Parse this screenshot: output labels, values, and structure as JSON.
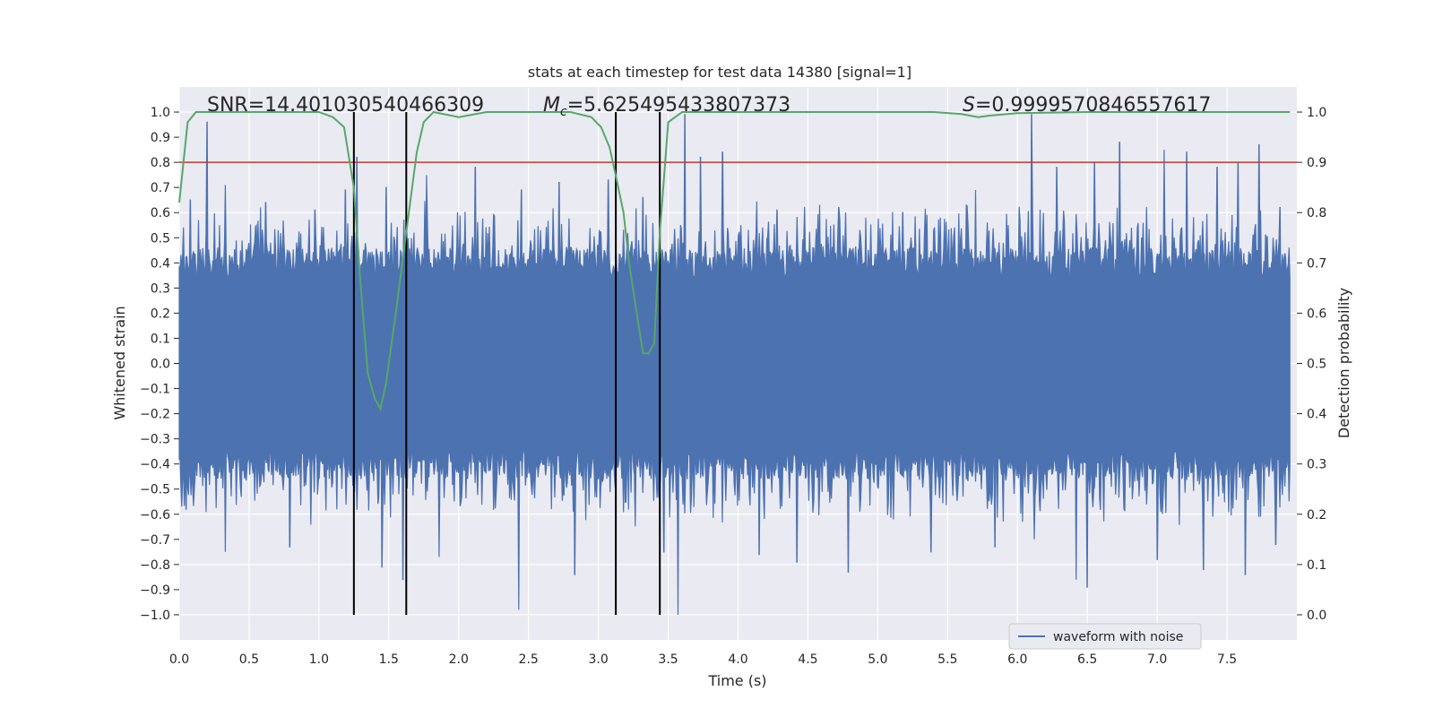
{
  "chart_data": {
    "type": "line",
    "title": "stats at each timestep for test data 14380 [signal=1]",
    "xlabel": "Time (s)",
    "ylabel": "Whitened strain",
    "y2label": "Detection probability",
    "xlim": [
      0.0,
      8.0
    ],
    "ylim": [
      -1.1,
      1.1
    ],
    "y2lim": [
      -0.05,
      1.05
    ],
    "x_ticks": [
      "0.0",
      "0.5",
      "1.0",
      "1.5",
      "2.0",
      "2.5",
      "3.0",
      "3.5",
      "4.0",
      "4.5",
      "5.0",
      "5.5",
      "6.0",
      "6.5",
      "7.0",
      "7.5"
    ],
    "y_ticks": [
      "1.0",
      "0.9",
      "0.8",
      "0.7",
      "0.6",
      "0.5",
      "0.4",
      "0.3",
      "0.2",
      "0.1",
      "0.0",
      "−0.1",
      "−0.2",
      "−0.3",
      "−0.4",
      "−0.5",
      "−0.6",
      "−0.7",
      "−0.8",
      "−0.9",
      "−1.0"
    ],
    "y2_ticks": [
      "1.0",
      "0.9",
      "0.8",
      "0.7",
      "0.6",
      "0.5",
      "0.4",
      "0.3",
      "0.2",
      "0.1",
      "0.0"
    ],
    "grid": true,
    "legend": {
      "placement": "lower-right",
      "entries": [
        "waveform with noise"
      ]
    },
    "annotations": {
      "snr": "SNR=14.401030540466309",
      "mc_symbol": "M",
      "mc_sub": "c",
      "mc_value": "=5.625495433807373",
      "s_symbol": "S",
      "s_value": "=0.9999570846557617"
    },
    "threshold": {
      "y2": 0.9,
      "color": "#c0392b"
    },
    "event_markers_x": [
      1.25,
      1.625,
      3.125,
      3.44
    ],
    "series": [
      {
        "name": "waveform with noise",
        "kind": "strain",
        "axis": "left",
        "color": "#4c72b0",
        "envelope": {
          "upper_base": 0.4,
          "lower_base": -0.4,
          "upper_spikes": [
            [
              0.08,
              0.65
            ],
            [
              0.2,
              0.96
            ],
            [
              0.33,
              0.71
            ],
            [
              0.62,
              0.64
            ],
            [
              0.97,
              0.61
            ],
            [
              1.19,
              0.69
            ],
            [
              1.27,
              0.82
            ],
            [
              1.48,
              0.7
            ],
            [
              1.77,
              0.75
            ],
            [
              2.12,
              0.78
            ],
            [
              2.45,
              0.69
            ],
            [
              2.72,
              0.72
            ],
            [
              3.07,
              0.73
            ],
            [
              3.32,
              0.66
            ],
            [
              3.62,
              0.99
            ],
            [
              3.73,
              0.82
            ],
            [
              3.89,
              0.84
            ],
            [
              4.28,
              0.61
            ],
            [
              4.72,
              0.62
            ],
            [
              5.18,
              0.6
            ],
            [
              5.7,
              0.69
            ],
            [
              6.1,
              0.99
            ],
            [
              6.28,
              0.78
            ],
            [
              6.55,
              0.8
            ],
            [
              6.73,
              0.88
            ],
            [
              7.05,
              0.85
            ],
            [
              7.21,
              0.84
            ],
            [
              7.43,
              0.78
            ],
            [
              7.58,
              0.8
            ],
            [
              7.73,
              0.87
            ],
            [
              7.88,
              0.62
            ]
          ],
          "lower_spikes": [
            [
              0.05,
              -0.58
            ],
            [
              0.33,
              -0.75
            ],
            [
              0.79,
              -0.73
            ],
            [
              1.45,
              -0.81
            ],
            [
              1.6,
              -0.86
            ],
            [
              1.86,
              -0.77
            ],
            [
              2.43,
              -0.98
            ],
            [
              2.83,
              -0.84
            ],
            [
              3.47,
              -0.75
            ],
            [
              3.57,
              -1.0
            ],
            [
              4.15,
              -0.76
            ],
            [
              4.42,
              -0.79
            ],
            [
              4.79,
              -0.83
            ],
            [
              5.38,
              -0.75
            ],
            [
              5.84,
              -0.73
            ],
            [
              6.12,
              -0.7
            ],
            [
              6.42,
              -0.86
            ],
            [
              6.5,
              -0.89
            ],
            [
              7.0,
              -0.78
            ],
            [
              7.33,
              -0.82
            ],
            [
              7.63,
              -0.84
            ],
            [
              7.85,
              -0.72
            ]
          ]
        }
      },
      {
        "name": "",
        "kind": "probability",
        "axis": "right",
        "color": "#55a868",
        "x": [
          0.0,
          0.06,
          0.12,
          0.2,
          0.4,
          0.6,
          0.8,
          1.0,
          1.1,
          1.18,
          1.25,
          1.3,
          1.35,
          1.4,
          1.44,
          1.48,
          1.55,
          1.62,
          1.7,
          1.75,
          1.82,
          2.0,
          2.2,
          2.5,
          2.8,
          2.95,
          3.02,
          3.08,
          3.12,
          3.18,
          3.22,
          3.28,
          3.32,
          3.36,
          3.4,
          3.44,
          3.5,
          3.6,
          3.8,
          4.0,
          4.5,
          5.0,
          5.4,
          5.6,
          5.72,
          5.8,
          6.0,
          6.5,
          7.0,
          7.5,
          7.95
        ],
        "y": [
          0.82,
          0.98,
          1.0,
          1.0,
          1.0,
          1.0,
          1.0,
          1.0,
          0.99,
          0.97,
          0.85,
          0.65,
          0.48,
          0.43,
          0.41,
          0.46,
          0.6,
          0.75,
          0.92,
          0.98,
          1.0,
          0.99,
          1.0,
          1.0,
          1.0,
          0.99,
          0.97,
          0.93,
          0.88,
          0.8,
          0.7,
          0.59,
          0.52,
          0.52,
          0.54,
          0.76,
          0.98,
          1.0,
          1.0,
          1.0,
          1.0,
          1.0,
          1.0,
          0.996,
          0.99,
          0.993,
          0.998,
          1.0,
          1.0,
          1.0,
          1.0
        ]
      }
    ]
  }
}
